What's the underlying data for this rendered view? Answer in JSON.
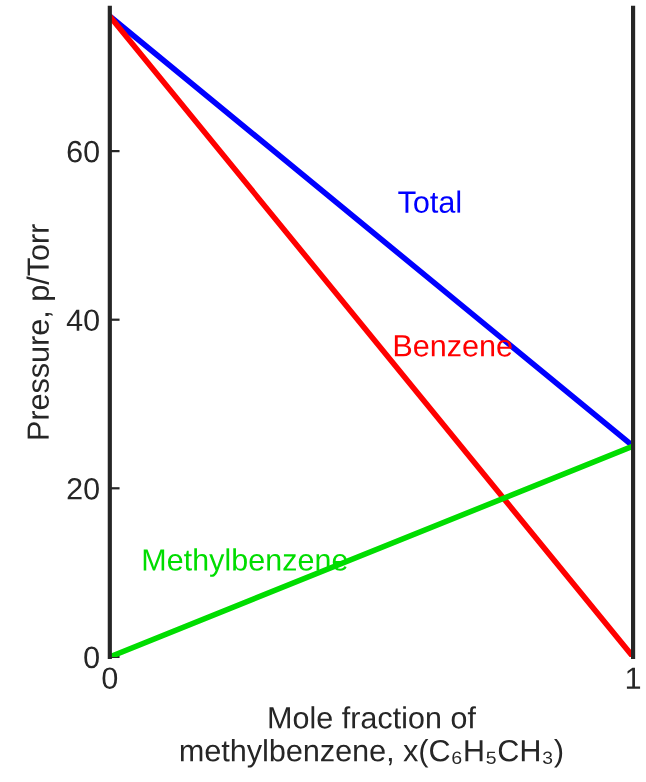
{
  "chart_data": {
    "type": "line",
    "xlabel": "Mole fraction of\nmethylbenzene, x(C₆H₅CH₃)",
    "ylabel": "Pressure, p/Torr",
    "x": [
      0,
      1
    ],
    "series": [
      {
        "name": "Total",
        "color": "#0000ff",
        "values": [
          76,
          25
        ]
      },
      {
        "name": "Benzene",
        "color": "#ff0000",
        "values": [
          76,
          0
        ]
      },
      {
        "name": "Methylbenzene",
        "color": "#00dd00",
        "values": [
          0,
          25
        ]
      }
    ],
    "xlim": [
      0,
      1
    ],
    "ylim": [
      0,
      77
    ],
    "xticks": [
      0,
      1
    ],
    "yticks": [
      0,
      20,
      40,
      60
    ],
    "grid": false,
    "legend": false,
    "marker": "none",
    "line_style": "solid"
  }
}
